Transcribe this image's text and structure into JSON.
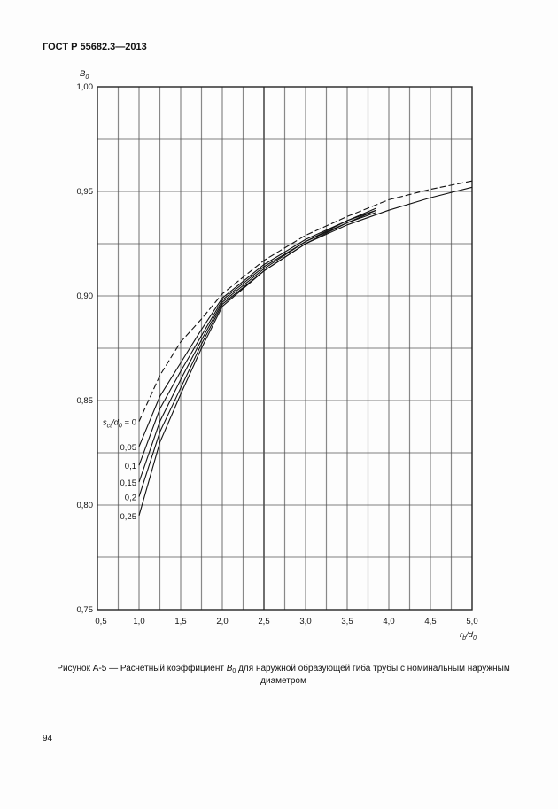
{
  "header": "ГОСТ Р 55682.3—2013",
  "caption": {
    "prefix": "Рисунок А-5 — Расчетный коэффициент ",
    "symbol": "B",
    "symbol_sub": "0",
    "suffix": " для наружной образующей гиба трубы с номинальным наружным диаметром"
  },
  "page_number": "94",
  "chart_data": {
    "type": "line",
    "title": "",
    "xlabel": {
      "main": "r",
      "sub1": "b",
      "mid": "/d",
      "sub2": "0"
    },
    "ylabel": {
      "main": "B",
      "sub": "0"
    },
    "xlim": [
      0.5,
      5.0
    ],
    "ylim": [
      0.75,
      1.0
    ],
    "grid": true,
    "x_ticks": [
      {
        "v": 0.5,
        "label": "0,5"
      },
      {
        "v": 1.0,
        "label": "1,0"
      },
      {
        "v": 1.5,
        "label": "1,5"
      },
      {
        "v": 2.0,
        "label": "2,0"
      },
      {
        "v": 2.5,
        "label": "2,5"
      },
      {
        "v": 3.0,
        "label": "3,0"
      },
      {
        "v": 3.5,
        "label": "3,5"
      },
      {
        "v": 4.0,
        "label": "4,0"
      },
      {
        "v": 4.5,
        "label": "4,5"
      },
      {
        "v": 5.0,
        "label": "5,0"
      }
    ],
    "y_ticks": [
      {
        "v": 0.75,
        "label": "0,75"
      },
      {
        "v": 0.8,
        "label": "0,80"
      },
      {
        "v": 0.85,
        "label": "0,85"
      },
      {
        "v": 0.9,
        "label": "0,90"
      },
      {
        "v": 0.95,
        "label": "0,95"
      },
      {
        "v": 1.0,
        "label": "1,00"
      }
    ],
    "series_label_prefix": {
      "s": "s",
      "sub1": "ct",
      "mid": "/d",
      "sub2": "0",
      "eq": " = "
    },
    "series": [
      {
        "name": "0",
        "style": "dashed",
        "x": [
          1.0,
          1.25,
          1.5,
          1.75,
          2.0,
          2.5,
          3.0,
          3.5,
          4.0,
          4.5,
          5.0
        ],
        "y": [
          0.84,
          0.862,
          0.878,
          0.889,
          0.901,
          0.917,
          0.929,
          0.938,
          0.946,
          0.951,
          0.955
        ]
      },
      {
        "name": "0,05",
        "style": "solid",
        "x": [
          1.0,
          1.25,
          1.5,
          1.75,
          2.0,
          2.5,
          3.0,
          3.5,
          3.85
        ],
        "y": [
          0.828,
          0.852,
          0.868,
          0.884,
          0.899,
          0.915,
          0.927,
          0.936,
          0.942
        ]
      },
      {
        "name": "0,1",
        "style": "solid",
        "x": [
          1.0,
          1.25,
          1.5,
          1.75,
          2.0,
          2.5,
          3.0,
          3.5,
          3.85
        ],
        "y": [
          0.819,
          0.846,
          0.864,
          0.881,
          0.898,
          0.914,
          0.926,
          0.936,
          0.941
        ]
      },
      {
        "name": "0,15",
        "style": "solid",
        "x": [
          1.0,
          1.25,
          1.5,
          1.75,
          2.0,
          2.5,
          3.0,
          3.5,
          3.85
        ],
        "y": [
          0.811,
          0.84,
          0.86,
          0.879,
          0.897,
          0.913,
          0.926,
          0.935,
          0.941
        ]
      },
      {
        "name": "0,2",
        "style": "solid",
        "x": [
          1.0,
          1.25,
          1.5,
          1.75,
          2.0,
          2.5,
          3.0,
          3.5,
          3.85
        ],
        "y": [
          0.804,
          0.835,
          0.856,
          0.877,
          0.896,
          0.912,
          0.925,
          0.935,
          0.94
        ]
      },
      {
        "name": "0,25",
        "style": "solid",
        "x": [
          1.0,
          1.25,
          1.5,
          1.75,
          2.0,
          2.5,
          3.0,
          3.5,
          4.0,
          4.5,
          5.0
        ],
        "y": [
          0.795,
          0.83,
          0.853,
          0.875,
          0.895,
          0.912,
          0.925,
          0.934,
          0.941,
          0.947,
          0.952
        ]
      }
    ]
  }
}
